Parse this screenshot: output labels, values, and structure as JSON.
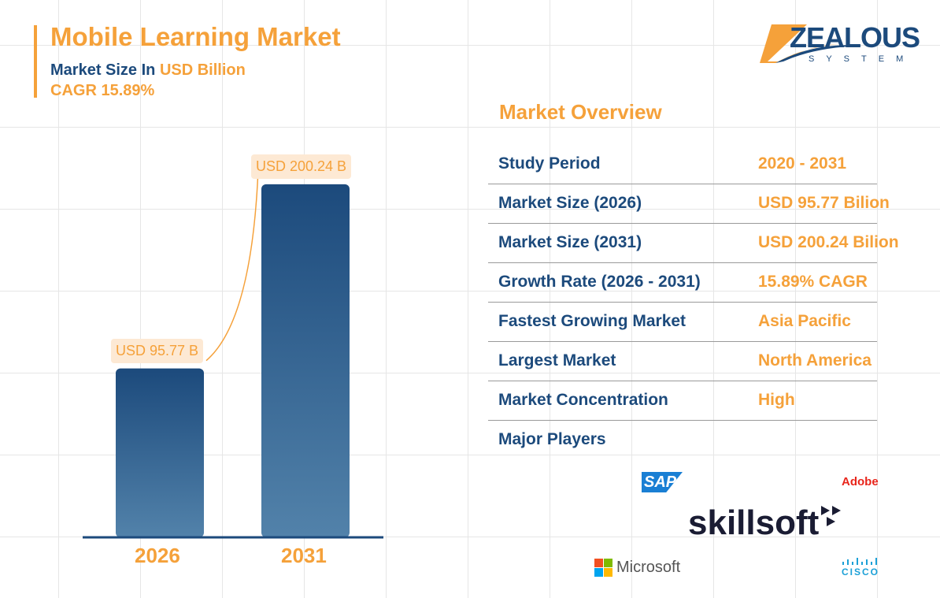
{
  "header": {
    "title": "Mobile Learning Market",
    "subtitle_prefix": "Market Size In",
    "subtitle_unit": "USD Billion",
    "cagr": "CAGR 15.89%"
  },
  "brand": {
    "name": "ZEALOUS",
    "tagline": "SYSTEM"
  },
  "chart_data": {
    "type": "bar",
    "categories": [
      "2026",
      "2031"
    ],
    "values": [
      95.77,
      200.24
    ],
    "data_labels": [
      "USD 95.77 B",
      "USD 200.24 B"
    ],
    "unit": "USD Billion",
    "colors": {
      "bar_top": "#1c4a7c",
      "bar_bottom": "#4f7fa8",
      "accent": "#f5a13a"
    },
    "grid": true
  },
  "overview": {
    "title": "Market Overview",
    "rows": [
      {
        "k": "Study Period",
        "v": "2020 - 2031"
      },
      {
        "k": "Market Size (2026)",
        "v": "USD 95.77 Bilion"
      },
      {
        "k": "Market Size (2031)",
        "v": "USD 200.24 Bilion"
      },
      {
        "k": "Growth Rate (2026 - 2031)",
        "v": "15.89% CAGR"
      },
      {
        "k": "Fastest Growing Market",
        "v": "Asia Pacific"
      },
      {
        "k": "Largest Market",
        "v": "North America"
      },
      {
        "k": "Market Concentration",
        "v": "High"
      },
      {
        "k": "Major Players",
        "v": ""
      }
    ]
  },
  "players": [
    "SAP",
    "Adobe",
    "skillsoft",
    "Microsoft",
    "CISCO"
  ]
}
